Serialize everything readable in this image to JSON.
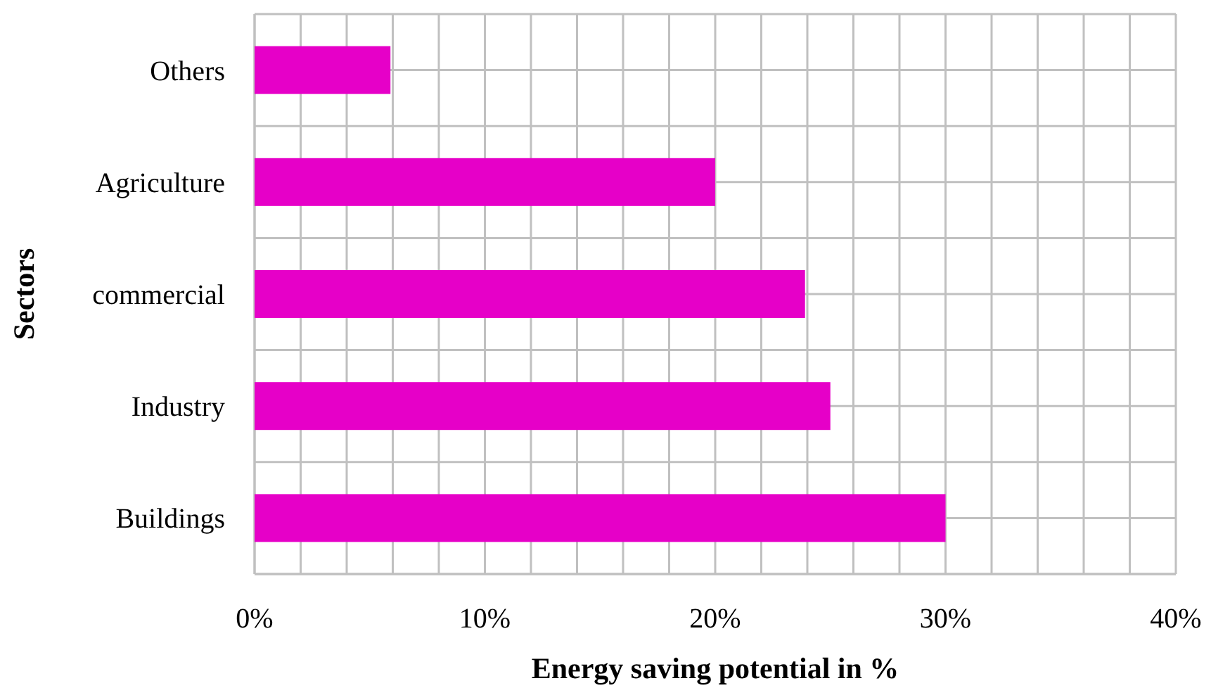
{
  "chart_data": {
    "type": "bar",
    "orientation": "horizontal",
    "xlabel": "Energy saving potential in %",
    "ylabel": "Sectors",
    "categories": [
      "Others",
      "Agriculture",
      "commercial",
      "Industry",
      "Buildings"
    ],
    "values": [
      5.9,
      20,
      23.9,
      25,
      30
    ],
    "color": "#e600c8",
    "xlim": [
      0,
      40
    ],
    "xticks": [
      {
        "value": 0,
        "label": "0%"
      },
      {
        "value": 2,
        "label": null
      },
      {
        "value": 4,
        "label": null
      },
      {
        "value": 6,
        "label": null
      },
      {
        "value": 8,
        "label": null
      },
      {
        "value": 10,
        "label": "10%"
      },
      {
        "value": 12,
        "label": null
      },
      {
        "value": 14,
        "label": null
      },
      {
        "value": 16,
        "label": null
      },
      {
        "value": 18,
        "label": null
      },
      {
        "value": 20,
        "label": "20%"
      },
      {
        "value": 22,
        "label": null
      },
      {
        "value": 24,
        "label": null
      },
      {
        "value": 26,
        "label": null
      },
      {
        "value": 28,
        "label": null
      },
      {
        "value": 30,
        "label": "30%"
      },
      {
        "value": 32,
        "label": null
      },
      {
        "value": 34,
        "label": null
      },
      {
        "value": 36,
        "label": null
      },
      {
        "value": 38,
        "label": null
      },
      {
        "value": 40,
        "label": "40%"
      }
    ],
    "grid": true
  }
}
